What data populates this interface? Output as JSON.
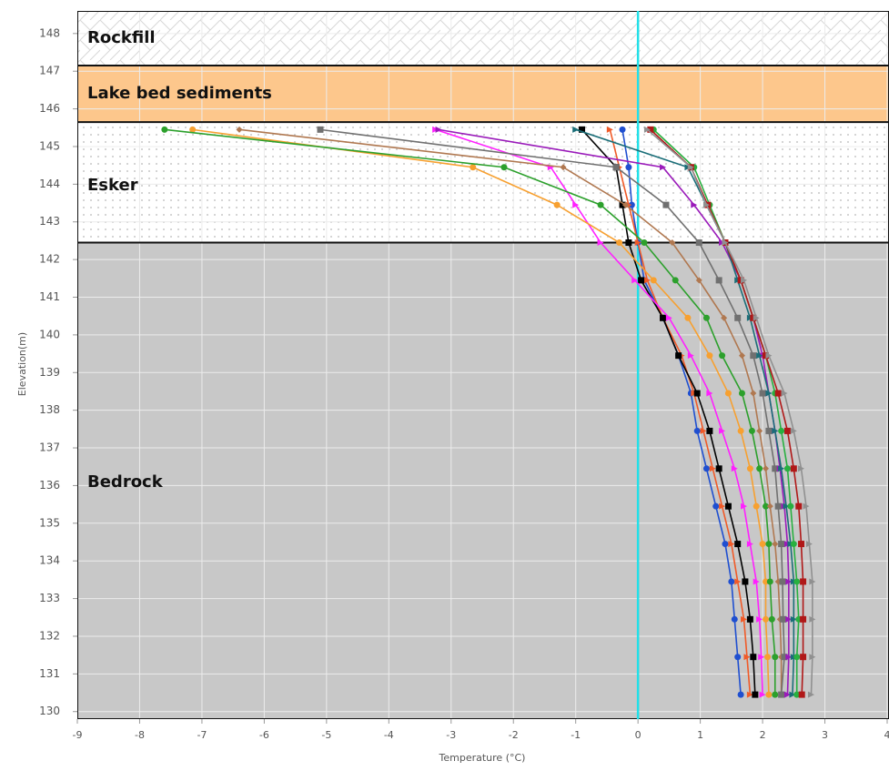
{
  "chart_data": {
    "type": "line",
    "xlabel": "Temperature (°C)",
    "ylabel": "Elevation(m)",
    "xlim": [
      -9,
      4
    ],
    "ylim": [
      129.8,
      148.6
    ],
    "xticks": [
      -9,
      -8,
      -7,
      -6,
      -5,
      -4,
      -3,
      -2,
      -1,
      0,
      1,
      2,
      3,
      4
    ],
    "yticks": [
      130,
      131,
      132,
      133,
      134,
      135,
      136,
      137,
      138,
      139,
      140,
      141,
      142,
      143,
      144,
      145,
      146,
      147,
      148
    ],
    "grid": true,
    "vline": 0,
    "vline_color": "#22e0e8",
    "layers": [
      {
        "name": "Rockfill",
        "top": 148.6,
        "bottom": 147.15,
        "color": "#ffffff",
        "pattern": "hatch"
      },
      {
        "name": "Lake bed sediments",
        "top": 147.15,
        "bottom": 145.65,
        "color": "#fdc78c",
        "pattern": "none"
      },
      {
        "name": "Esker",
        "top": 145.65,
        "bottom": 142.45,
        "color": "#ffffff",
        "pattern": "dots"
      },
      {
        "name": "Bedrock",
        "top": 142.45,
        "bottom": 129.8,
        "color": "#c8c8c8",
        "pattern": "none"
      }
    ],
    "y": [
      145.45,
      144.45,
      143.45,
      142.45,
      141.45,
      140.45,
      139.45,
      138.45,
      137.45,
      136.45,
      135.45,
      134.45,
      133.45,
      132.45,
      131.45,
      130.45
    ],
    "series": [
      {
        "color": "#1f4fd0",
        "marker": "circle",
        "values": [
          -0.25,
          -0.15,
          -0.1,
          0.0,
          0.1,
          0.4,
          0.65,
          0.85,
          0.95,
          1.1,
          1.25,
          1.4,
          1.5,
          1.55,
          1.6,
          1.65
        ]
      },
      {
        "color": "#f05a28",
        "marker": "triangle",
        "values": [
          -0.45,
          -0.3,
          -0.15,
          0.0,
          0.15,
          0.4,
          0.7,
          0.9,
          1.05,
          1.2,
          1.35,
          1.5,
          1.6,
          1.7,
          1.75,
          1.8
        ]
      },
      {
        "color": "#000000",
        "marker": "square",
        "values": [
          -0.9,
          -0.35,
          -0.25,
          -0.15,
          0.05,
          0.4,
          0.65,
          0.95,
          1.15,
          1.3,
          1.45,
          1.6,
          1.72,
          1.8,
          1.85,
          1.88
        ]
      },
      {
        "color": "#ff20ff",
        "marker": "triangle",
        "values": [
          -3.25,
          -1.4,
          -1.0,
          -0.6,
          -0.05,
          0.5,
          0.85,
          1.15,
          1.35,
          1.55,
          1.7,
          1.8,
          1.9,
          1.95,
          1.98,
          2.0
        ]
      },
      {
        "color": "#f7a030",
        "marker": "circle",
        "values": [
          -7.15,
          -2.65,
          -1.3,
          -0.3,
          0.25,
          0.8,
          1.15,
          1.45,
          1.65,
          1.8,
          1.9,
          2.0,
          2.05,
          2.05,
          2.08,
          2.1
        ]
      },
      {
        "color": "#2ca02c",
        "marker": "circle",
        "values": [
          -7.6,
          -2.15,
          -0.6,
          0.1,
          0.6,
          1.1,
          1.35,
          1.67,
          1.83,
          1.95,
          2.05,
          2.1,
          2.12,
          2.15,
          2.2,
          2.2
        ]
      },
      {
        "color": "#b07850",
        "marker": "diamond",
        "values": [
          -6.4,
          -1.2,
          -0.2,
          0.55,
          0.98,
          1.38,
          1.67,
          1.85,
          1.95,
          2.05,
          2.12,
          2.2,
          2.25,
          2.28,
          2.3,
          2.3
        ]
      },
      {
        "color": "#707070",
        "marker": "square",
        "values": [
          -5.1,
          -0.35,
          0.45,
          0.98,
          1.3,
          1.6,
          1.85,
          2.0,
          2.1,
          2.2,
          2.25,
          2.3,
          2.32,
          2.33,
          2.35,
          2.3
        ]
      },
      {
        "color": "#9a1aba",
        "marker": "triangle",
        "values": [
          -3.2,
          0.4,
          0.9,
          1.35,
          1.65,
          1.85,
          2.0,
          2.1,
          2.2,
          2.28,
          2.35,
          2.4,
          2.42,
          2.42,
          2.42,
          2.4
        ]
      },
      {
        "color": "#1a6e78",
        "marker": "triangle",
        "values": [
          -1.0,
          0.8,
          1.1,
          1.4,
          1.6,
          1.8,
          1.95,
          2.1,
          2.2,
          2.3,
          2.38,
          2.45,
          2.5,
          2.5,
          2.5,
          2.48
        ]
      },
      {
        "color": "#28b040",
        "marker": "circle",
        "values": [
          0.25,
          0.9,
          1.15,
          1.4,
          1.65,
          1.85,
          2.05,
          2.2,
          2.3,
          2.4,
          2.45,
          2.5,
          2.55,
          2.58,
          2.55,
          2.55
        ]
      },
      {
        "color": "#b01818",
        "marker": "square",
        "values": [
          0.2,
          0.85,
          1.12,
          1.4,
          1.65,
          1.85,
          2.05,
          2.25,
          2.4,
          2.5,
          2.58,
          2.62,
          2.65,
          2.65,
          2.65,
          2.63
        ]
      },
      {
        "color": "#909090",
        "marker": "triangle",
        "values": [
          0.15,
          0.85,
          1.1,
          1.4,
          1.7,
          1.9,
          2.1,
          2.35,
          2.5,
          2.62,
          2.7,
          2.75,
          2.8,
          2.8,
          2.8,
          2.78
        ]
      }
    ]
  }
}
